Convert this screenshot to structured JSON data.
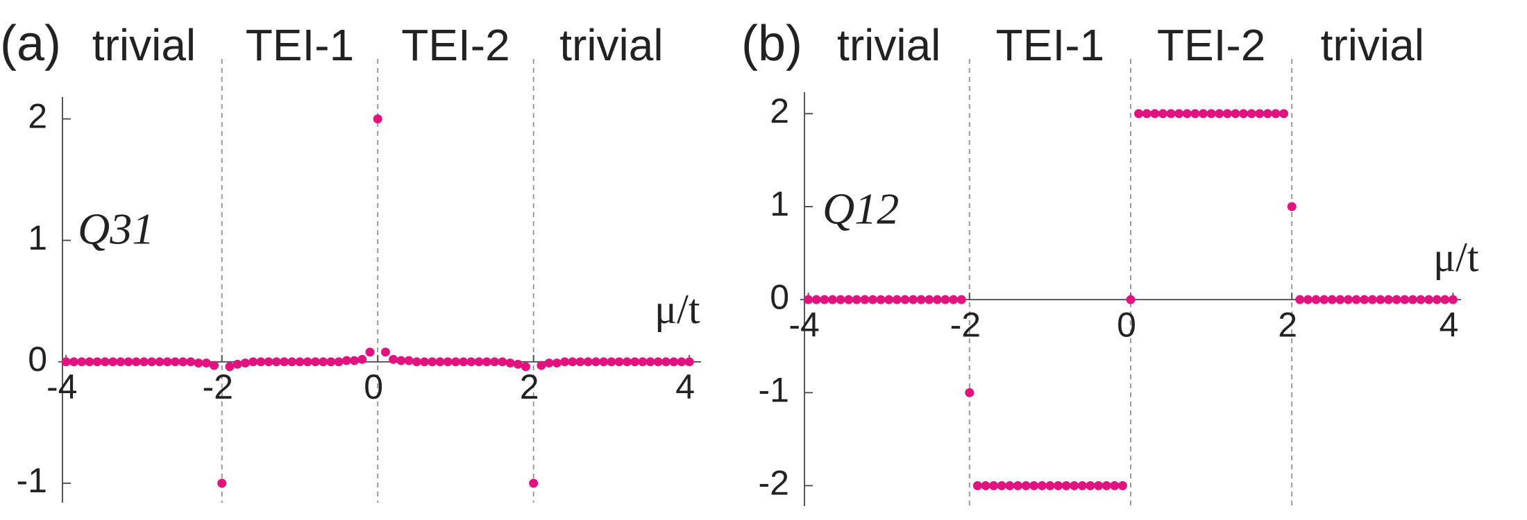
{
  "chart_data": [
    {
      "type": "scatter",
      "panel_label": "(a)",
      "quantity_label": "Q31",
      "x_label": "μ/t",
      "regions": [
        "trivial",
        "TEI-1",
        "TEI-2",
        "trivial"
      ],
      "boundaries": [
        -2,
        0,
        2
      ],
      "color": "#e2127f",
      "x": [
        -4,
        -3.9,
        -3.8,
        -3.7,
        -3.6,
        -3.5,
        -3.4,
        -3.3,
        -3.2,
        -3.1,
        -3,
        -2.9,
        -2.8,
        -2.7,
        -2.6,
        -2.5,
        -2.4,
        -2.3,
        -2.2,
        -2.1,
        -2,
        -1.9,
        -1.8,
        -1.7,
        -1.6,
        -1.5,
        -1.4,
        -1.3,
        -1.2,
        -1.1,
        -1,
        -0.9,
        -0.8,
        -0.7,
        -0.6,
        -0.5,
        -0.4,
        -0.3,
        -0.2,
        -0.1,
        0,
        0.1,
        0.2,
        0.3,
        0.4,
        0.5,
        0.6,
        0.7,
        0.8,
        0.9,
        1,
        1.1,
        1.2,
        1.3,
        1.4,
        1.5,
        1.6,
        1.7,
        1.8,
        1.9,
        2,
        2.1,
        2.2,
        2.3,
        2.4,
        2.5,
        2.6,
        2.7,
        2.8,
        2.9,
        3,
        3.1,
        3.2,
        3.3,
        3.4,
        3.5,
        3.6,
        3.7,
        3.8,
        3.9,
        4
      ],
      "values": [
        0,
        0,
        0,
        0,
        0,
        0,
        0,
        0,
        0,
        0,
        0,
        0,
        0,
        0,
        0,
        0,
        0,
        -0.01,
        -0.01,
        -0.03,
        -1,
        -0.04,
        -0.02,
        -0.01,
        0,
        0,
        0,
        0,
        0,
        0,
        0,
        0,
        0,
        0,
        0,
        0,
        0.01,
        0.01,
        0.02,
        0.08,
        2,
        0.08,
        0.02,
        0.01,
        0.01,
        0,
        0,
        0,
        0,
        0,
        0,
        0,
        0,
        0,
        0,
        0,
        0,
        -0.01,
        -0.02,
        -0.04,
        -1,
        -0.03,
        -0.01,
        -0.01,
        0,
        0,
        0,
        0,
        0,
        0,
        0,
        0,
        0,
        0,
        0,
        0,
        0,
        0,
        0,
        0,
        0
      ],
      "xlim": [
        -4.1,
        4.15
      ],
      "ylim": [
        -1.16,
        2.18
      ],
      "xticks": [
        -4,
        -2,
        0,
        2,
        4
      ],
      "yticks": [
        -1,
        0,
        1,
        2
      ]
    },
    {
      "type": "scatter",
      "panel_label": "(b)",
      "quantity_label": "Q12",
      "x_label": "μ/t",
      "regions": [
        "trivial",
        "TEI-1",
        "TEI-2",
        "trivial"
      ],
      "boundaries": [
        -2,
        0,
        2
      ],
      "color": "#e2127f",
      "x": [
        -4,
        -3.9,
        -3.8,
        -3.7,
        -3.6,
        -3.5,
        -3.4,
        -3.3,
        -3.2,
        -3.1,
        -3,
        -2.9,
        -2.8,
        -2.7,
        -2.6,
        -2.5,
        -2.4,
        -2.3,
        -2.2,
        -2.1,
        -2,
        -1.9,
        -1.8,
        -1.7,
        -1.6,
        -1.5,
        -1.4,
        -1.3,
        -1.2,
        -1.1,
        -1,
        -0.9,
        -0.8,
        -0.7,
        -0.6,
        -0.5,
        -0.4,
        -0.3,
        -0.2,
        -0.1,
        0,
        0.1,
        0.2,
        0.3,
        0.4,
        0.5,
        0.6,
        0.7,
        0.8,
        0.9,
        1,
        1.1,
        1.2,
        1.3,
        1.4,
        1.5,
        1.6,
        1.7,
        1.8,
        1.9,
        2,
        2.1,
        2.2,
        2.3,
        2.4,
        2.5,
        2.6,
        2.7,
        2.8,
        2.9,
        3,
        3.1,
        3.2,
        3.3,
        3.4,
        3.5,
        3.6,
        3.7,
        3.8,
        3.9,
        4
      ],
      "values": [
        0,
        0,
        0,
        0,
        0,
        0,
        0,
        0,
        0,
        0,
        0,
        0,
        0,
        0,
        0,
        0,
        0,
        0,
        0,
        0,
        -1,
        -2,
        -2,
        -2,
        -2,
        -2,
        -2,
        -2,
        -2,
        -2,
        -2,
        -2,
        -2,
        -2,
        -2,
        -2,
        -2,
        -2,
        -2,
        -2,
        0,
        2,
        2,
        2,
        2,
        2,
        2,
        2,
        2,
        2,
        2,
        2,
        2,
        2,
        2,
        2,
        2,
        2,
        2,
        2,
        1,
        0,
        0,
        0,
        0,
        0,
        0,
        0,
        0,
        0,
        0,
        0,
        0,
        0,
        0,
        0,
        0,
        0,
        0,
        0,
        0
      ],
      "xlim": [
        -4.1,
        4.1
      ],
      "ylim": [
        -2.22,
        2.23
      ],
      "xticks": [
        -4,
        -2,
        0,
        2,
        4
      ],
      "yticks": [
        -2,
        -1,
        0,
        1,
        2
      ]
    }
  ]
}
